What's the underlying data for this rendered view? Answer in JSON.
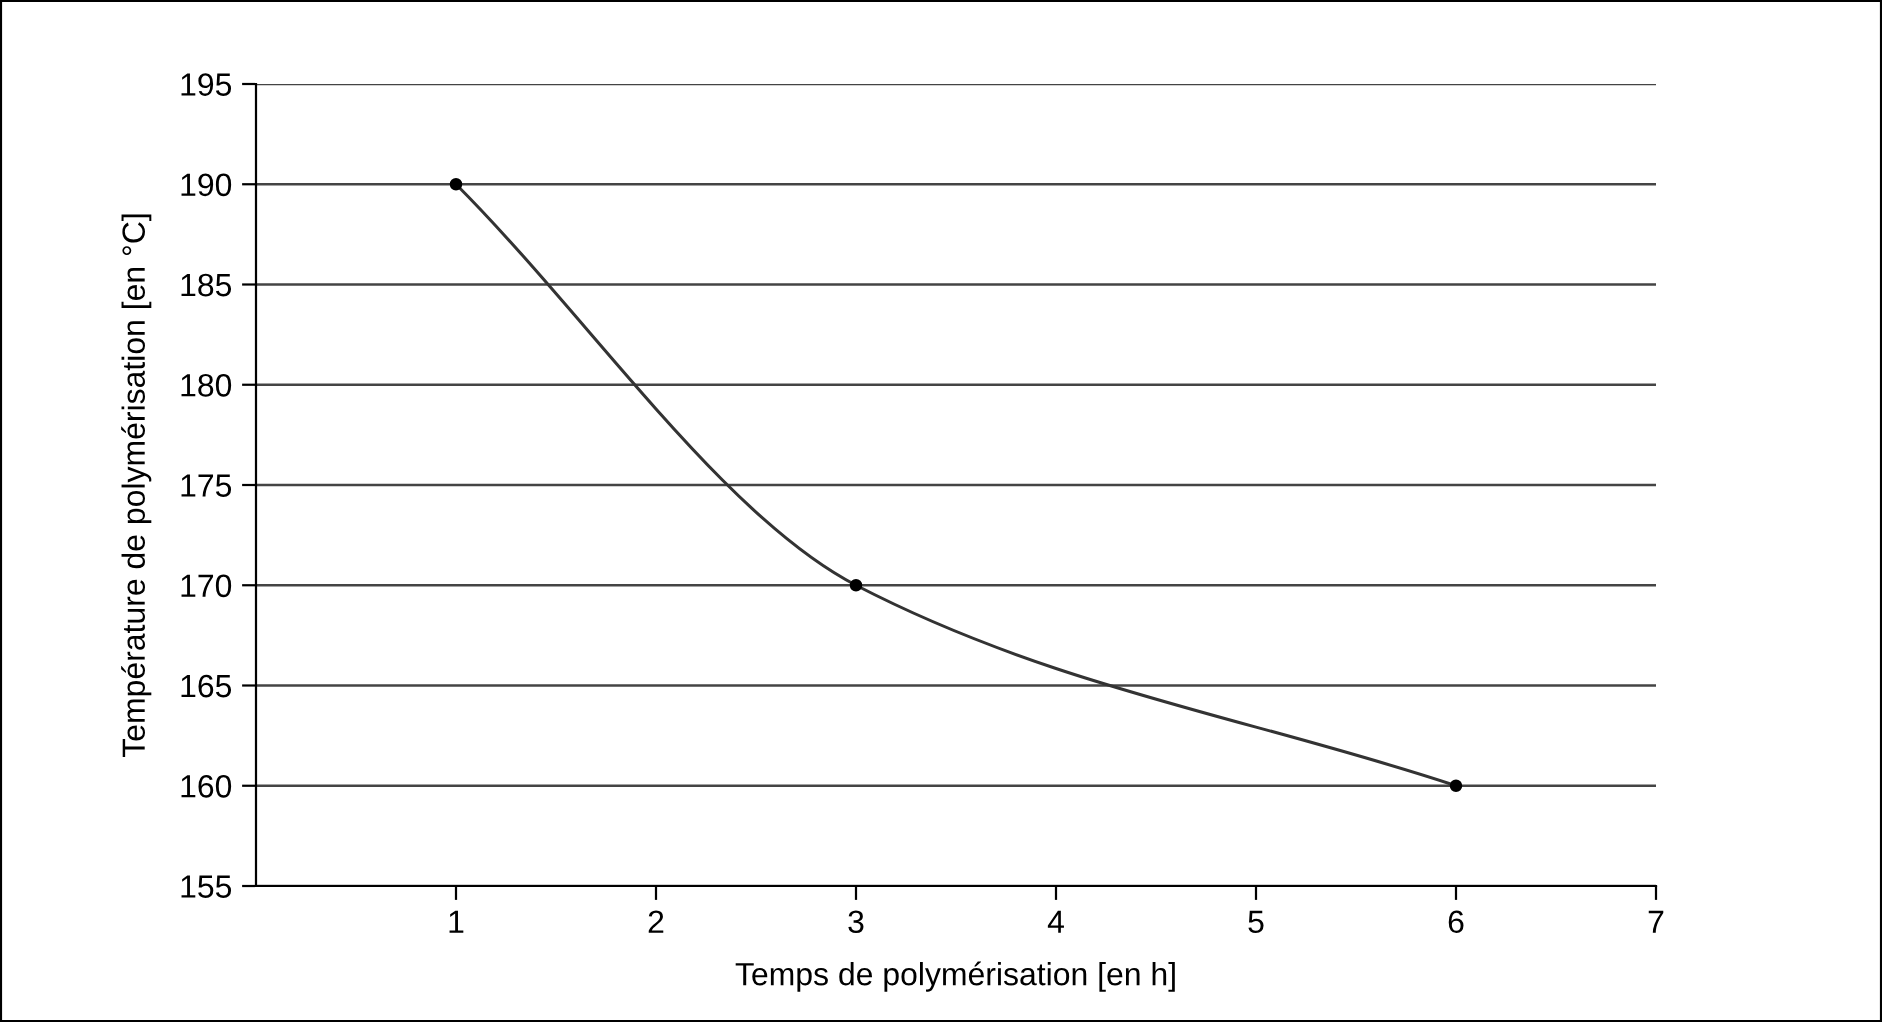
{
  "chart_data": {
    "type": "line",
    "xlabel": "Temps de polymérisation [en h]",
    "ylabel": "Température de polymérisation [en °C]",
    "x": [
      1,
      3,
      6
    ],
    "series": [
      {
        "color": "#333333",
        "values": [
          190,
          170,
          160
        ]
      }
    ],
    "xlim": [
      0,
      7
    ],
    "xticks": [
      1,
      2,
      3,
      4,
      5,
      6,
      7
    ],
    "ylim": [
      155,
      195
    ],
    "yticks": [
      155,
      160,
      165,
      170,
      175,
      180,
      185,
      190,
      195
    ],
    "grid": "y",
    "legend": false,
    "marker": "circle",
    "line_style": "solid"
  }
}
